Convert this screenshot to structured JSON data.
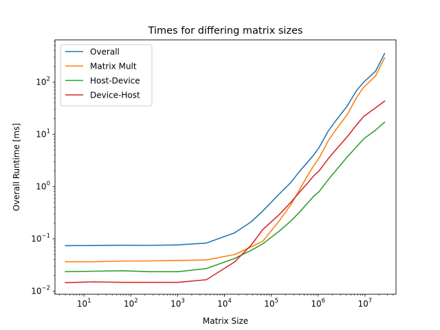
{
  "chart_data": {
    "type": "line",
    "title": "Times for differing matrix sizes",
    "xlabel": "Matrix Size",
    "ylabel": "Overall Runtime [ms]",
    "x_scale": "log",
    "y_scale": "log",
    "xlim": [
      2.4,
      46000000
    ],
    "ylim": [
      0.0087,
      640
    ],
    "x_ticks": [
      {
        "value": 10,
        "base": "10",
        "exp": "1"
      },
      {
        "value": 100,
        "base": "10",
        "exp": "2"
      },
      {
        "value": 1000,
        "base": "10",
        "exp": "3"
      },
      {
        "value": 10000,
        "base": "10",
        "exp": "4"
      },
      {
        "value": 100000,
        "base": "10",
        "exp": "5"
      },
      {
        "value": 1000000,
        "base": "10",
        "exp": "6"
      },
      {
        "value": 10000000,
        "base": "10",
        "exp": "7"
      }
    ],
    "y_ticks": [
      {
        "value": 0.01,
        "base": "10",
        "exp": "−2"
      },
      {
        "value": 0.1,
        "base": "10",
        "exp": "−1"
      },
      {
        "value": 1,
        "base": "10",
        "exp": "0"
      },
      {
        "value": 10,
        "base": "10",
        "exp": "1"
      },
      {
        "value": 100,
        "base": "10",
        "exp": "2"
      }
    ],
    "grid": false,
    "legend_position": "top-left",
    "x": [
      4,
      16,
      64,
      256,
      1024,
      4096,
      16384,
      36864,
      65536,
      147456,
      262144,
      409600,
      589824,
      802816,
      1048576,
      1638400,
      2359296,
      4194304,
      6553600,
      9437184,
      16777216,
      26214400
    ],
    "series": [
      {
        "name": "Overall",
        "color": "#1f77b4",
        "values": [
          0.074,
          0.0745,
          0.0755,
          0.075,
          0.0765,
          0.083,
          0.13,
          0.21,
          0.34,
          0.72,
          1.2,
          2.0,
          2.9,
          4.0,
          5.6,
          11.5,
          18.0,
          35.0,
          68.0,
          100.0,
          160.0,
          350.0
        ]
      },
      {
        "name": "Matrix Mult",
        "color": "#ff7f0e",
        "values": [
          0.0365,
          0.0365,
          0.0375,
          0.0378,
          0.0385,
          0.0395,
          0.05,
          0.07,
          0.09,
          0.22,
          0.45,
          0.9,
          1.6,
          2.5,
          3.5,
          7.5,
          12.0,
          24.0,
          50.0,
          80.0,
          130.0,
          290.0
        ]
      },
      {
        "name": "Host-Device",
        "color": "#2ca02c",
        "values": [
          0.0235,
          0.024,
          0.0245,
          0.0235,
          0.0235,
          0.027,
          0.042,
          0.06,
          0.08,
          0.14,
          0.22,
          0.33,
          0.48,
          0.65,
          0.8,
          1.35,
          2.0,
          3.7,
          5.7,
          8.2,
          12.0,
          17.0
        ]
      },
      {
        "name": "Device-Host",
        "color": "#d62728",
        "values": [
          0.0145,
          0.015,
          0.0147,
          0.0147,
          0.0147,
          0.0165,
          0.036,
          0.075,
          0.15,
          0.29,
          0.5,
          0.8,
          1.15,
          1.6,
          2.0,
          3.4,
          5.0,
          9.0,
          15.0,
          22.0,
          32.0,
          43.0
        ]
      }
    ]
  }
}
